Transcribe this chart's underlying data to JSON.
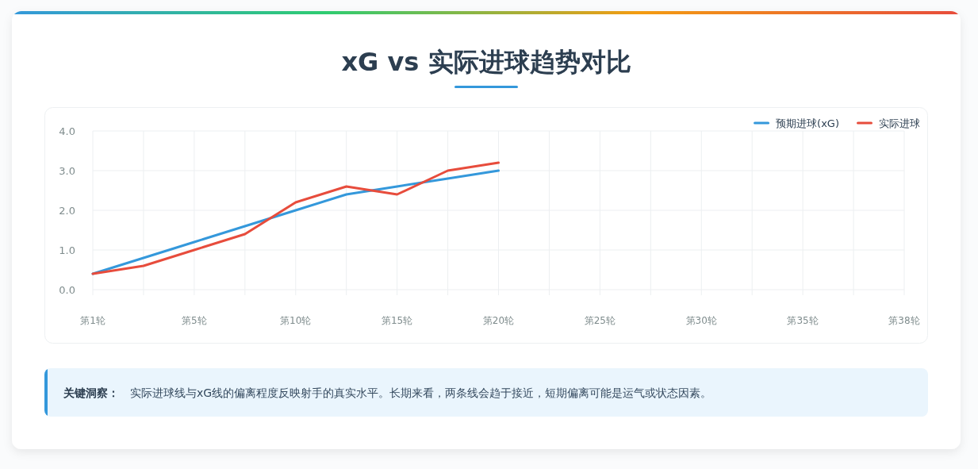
{
  "chart_data": {
    "type": "line",
    "title": "xG vs 实际进球趋势对比",
    "categories": [
      "第1轮",
      null,
      "第5轮",
      null,
      "第10轮",
      null,
      "第15轮",
      null,
      "第20轮",
      null,
      "第25轮",
      null,
      "第30轮",
      null,
      "第35轮",
      null,
      "第38轮"
    ],
    "series": [
      {
        "name": "预期进球(xG)",
        "color": "#3498db",
        "values": [
          0.4,
          0.8,
          1.2,
          1.6,
          2.0,
          2.4,
          2.6,
          2.8,
          3.0,
          null,
          null,
          null,
          null,
          null,
          null,
          null,
          null
        ]
      },
      {
        "name": "实际进球",
        "color": "#e74c3c",
        "values": [
          0.4,
          0.6,
          1.0,
          1.4,
          2.2,
          2.6,
          2.4,
          3.0,
          3.2,
          null,
          null,
          null,
          null,
          null,
          null,
          null,
          null
        ]
      }
    ],
    "ylim": [
      0,
      4
    ],
    "yticks": [
      {
        "value": 0,
        "label": "0.0"
      },
      {
        "value": 1,
        "label": "1.0"
      },
      {
        "value": 2,
        "label": "2.0"
      },
      {
        "value": 3,
        "label": "3.0"
      },
      {
        "value": 4,
        "label": "4.0"
      }
    ],
    "grid": true,
    "legend": "top right",
    "annotations": [
      "关键洞察：",
      "实际进球线与xG线的偏离程度反映射手的真实水平。长期来看，两条线会趋于接近，短期偏离可能是运气或状态因素。"
    ]
  }
}
